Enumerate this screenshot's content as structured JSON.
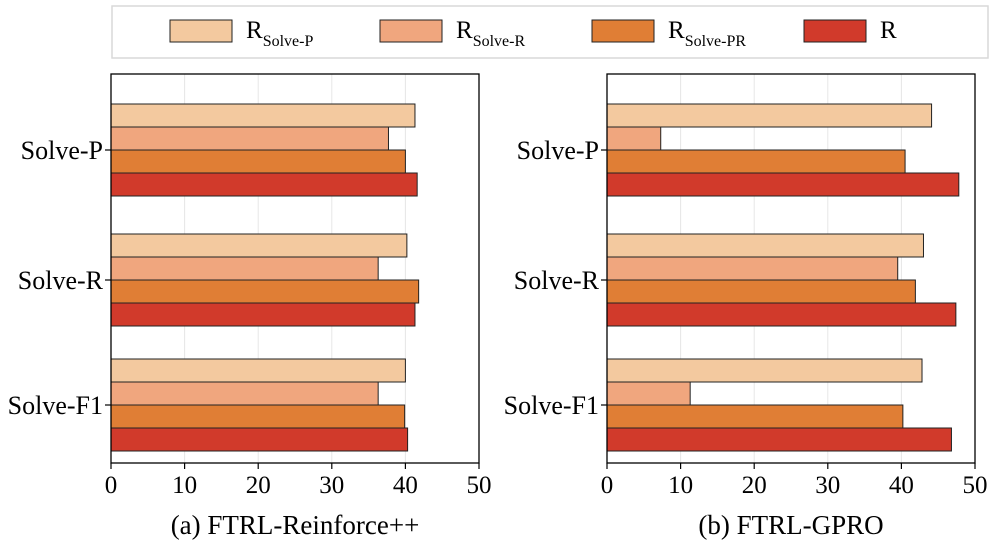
{
  "legend": {
    "items": [
      {
        "base": "R",
        "sub": "Solve-P",
        "color": "#f3c99f"
      },
      {
        "base": "R",
        "sub": "Solve-R",
        "color": "#f0a67e"
      },
      {
        "base": "R",
        "sub": "Solve-PR",
        "color": "#e07e35"
      },
      {
        "base": "R",
        "sub": "",
        "color": "#d13a2b"
      }
    ]
  },
  "chart_data": [
    {
      "type": "bar",
      "orientation": "horizontal",
      "title": "(a) FTRL-Reinforce++",
      "categories": [
        "Solve-P",
        "Solve-R",
        "Solve-F1"
      ],
      "xlim": [
        0,
        50
      ],
      "xticks": [
        0,
        10,
        20,
        30,
        40,
        50
      ],
      "grid": true,
      "series": [
        {
          "name": "R_Solve-P",
          "values": [
            41.3,
            40.2,
            40.0
          ]
        },
        {
          "name": "R_Solve-R",
          "values": [
            37.7,
            36.3,
            36.3
          ]
        },
        {
          "name": "R_Solve-PR",
          "values": [
            40.0,
            41.8,
            39.9
          ]
        },
        {
          "name": "R",
          "values": [
            41.6,
            41.3,
            40.3
          ]
        }
      ]
    },
    {
      "type": "bar",
      "orientation": "horizontal",
      "title": "(b) FTRL-GPRO",
      "categories": [
        "Solve-P",
        "Solve-R",
        "Solve-F1"
      ],
      "xlim": [
        0,
        50
      ],
      "xticks": [
        0,
        10,
        20,
        30,
        40,
        50
      ],
      "grid": true,
      "series": [
        {
          "name": "R_Solve-P",
          "values": [
            44.1,
            43.0,
            42.8
          ]
        },
        {
          "name": "R_Solve-R",
          "values": [
            7.3,
            39.5,
            11.3
          ]
        },
        {
          "name": "R_Solve-PR",
          "values": [
            40.5,
            41.9,
            40.2
          ]
        },
        {
          "name": "R",
          "values": [
            47.8,
            47.4,
            46.8
          ]
        }
      ]
    }
  ]
}
